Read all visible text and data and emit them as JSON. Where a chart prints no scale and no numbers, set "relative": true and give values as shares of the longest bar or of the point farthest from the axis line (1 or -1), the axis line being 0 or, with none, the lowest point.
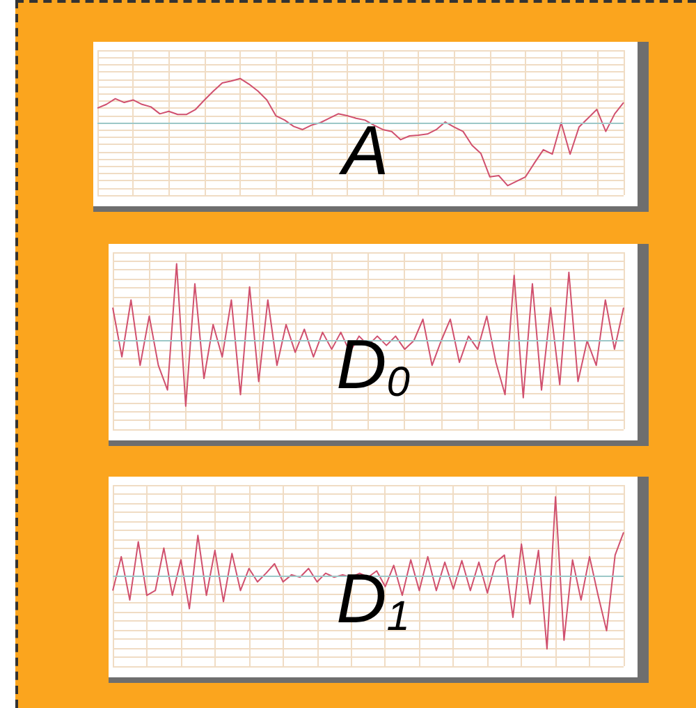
{
  "chart_data": [
    {
      "type": "line",
      "title": "A",
      "relative": true,
      "ref_lines": [
        {
          "axis": "y",
          "value": 0,
          "color": "#9cc8c8"
        }
      ],
      "grid": true,
      "marker": "none",
      "categories": [
        null,
        null,
        null,
        null,
        null,
        null,
        null,
        null,
        null,
        null,
        null,
        null,
        null,
        null,
        null,
        null,
        null,
        null,
        null,
        null,
        null,
        null,
        null,
        null,
        null,
        null,
        null,
        null,
        null,
        null,
        null,
        null,
        null,
        null,
        null,
        null,
        null,
        null,
        null,
        null,
        null,
        null,
        null,
        null,
        null,
        null,
        null,
        null,
        null,
        null,
        null,
        null,
        null,
        null,
        null,
        null,
        null,
        null,
        null,
        null
      ],
      "series": [
        {
          "color": "#d0506e",
          "values": [
            0.23,
            0.29,
            0.38,
            0.32,
            0.36,
            0.29,
            0.25,
            0.14,
            0.18,
            0.13,
            0.13,
            0.21,
            0.36,
            0.5,
            0.63,
            0.66,
            0.7,
            0.61,
            0.5,
            0.36,
            0.11,
            0.04,
            -0.06,
            -0.11,
            -0.04,
            0,
            0.07,
            0.14,
            0.11,
            0.07,
            0.04,
            -0.04,
            -0.11,
            -0.14,
            -0.27,
            -0.21,
            -0.2,
            -0.18,
            -0.11,
            0.01,
            -0.07,
            -0.14,
            -0.36,
            -0.49,
            -0.86,
            -0.84,
            -1,
            -0.93,
            -0.86,
            -0.64,
            -0.43,
            -0.5,
            0,
            -0.5,
            -0.07,
            0.07,
            0.21,
            -0.14,
            0.14,
            0.32
          ]
        }
      ]
    },
    {
      "type": "line",
      "title": "D$_{0}$",
      "relative": true,
      "ref_lines": [
        {
          "axis": "y",
          "value": 0,
          "color": "#9cc8c8"
        }
      ],
      "grid": true,
      "marker": "none",
      "categories": [
        null,
        null,
        null,
        null,
        null,
        null,
        null,
        null,
        null,
        null,
        null,
        null,
        null,
        null,
        null,
        null,
        null,
        null,
        null,
        null,
        null,
        null,
        null,
        null,
        null,
        null,
        null,
        null,
        null,
        null,
        null,
        null,
        null,
        null,
        null,
        null,
        null,
        null,
        null,
        null,
        null,
        null,
        null,
        null,
        null,
        null,
        null,
        null,
        null,
        null,
        null,
        null,
        null,
        null,
        null,
        null,
        null
      ],
      "series": [
        {
          "color": "#d0506e",
          "values": [
            0.43,
            -0.21,
            0.53,
            -0.32,
            0.32,
            -0.32,
            -0.64,
            1,
            -0.85,
            0.74,
            -0.49,
            0.21,
            -0.21,
            0.53,
            -0.7,
            0.7,
            -0.53,
            0.53,
            -0.32,
            0.21,
            -0.15,
            0.15,
            -0.21,
            0.11,
            -0.11,
            0.11,
            -0.15,
            0.06,
            -0.06,
            0.06,
            -0.06,
            0.06,
            -0.11,
            0,
            0.28,
            -0.32,
            0,
            0.28,
            -0.28,
            0.06,
            -0.11,
            0.32,
            -0.28,
            -0.7,
            0.85,
            -0.74,
            0.74,
            -0.64,
            0.43,
            -0.57,
            0.89,
            -0.53,
            0,
            -0.32,
            0.53,
            -0.11,
            0.43
          ]
        }
      ]
    },
    {
      "type": "line",
      "title": "D$_{1}$",
      "relative": true,
      "ref_lines": [
        {
          "axis": "y",
          "value": 0,
          "color": "#9cc8c8"
        }
      ],
      "grid": true,
      "marker": "none",
      "categories": [
        null,
        null,
        null,
        null,
        null,
        null,
        null,
        null,
        null,
        null,
        null,
        null,
        null,
        null,
        null,
        null,
        null,
        null,
        null,
        null,
        null,
        null,
        null,
        null,
        null,
        null,
        null,
        null,
        null,
        null,
        null,
        null,
        null,
        null,
        null,
        null,
        null,
        null,
        null,
        null,
        null,
        null,
        null,
        null,
        null,
        null,
        null,
        null,
        null,
        null,
        null,
        null,
        null,
        null,
        null,
        null,
        null,
        null,
        null,
        null,
        null
      ],
      "series": [
        {
          "color": "#d0506e",
          "values": [
            -0.19,
            0.24,
            -0.31,
            0.43,
            -0.25,
            -0.19,
            0.35,
            -0.25,
            0.2,
            -0.42,
            0.51,
            -0.25,
            0.32,
            -0.33,
            0.28,
            -0.19,
            0.09,
            -0.08,
            0.03,
            0.15,
            -0.08,
            0.01,
            -0.02,
            0.09,
            -0.08,
            0.03,
            -0.02,
            0.01,
            -0.02,
            0.03,
            -0.02,
            0.06,
            -0.14,
            0.13,
            -0.25,
            0.2,
            -0.19,
            0.24,
            -0.19,
            0.17,
            -0.17,
            0.19,
            -0.19,
            0.17,
            -0.22,
            0.17,
            0.26,
            -0.53,
            0.4,
            -0.36,
            0.32,
            -0.93,
            1,
            -0.82,
            0.2,
            -0.31,
            0.24,
            -0.25,
            -0.7,
            0.26,
            0.55
          ]
        }
      ]
    }
  ]
}
